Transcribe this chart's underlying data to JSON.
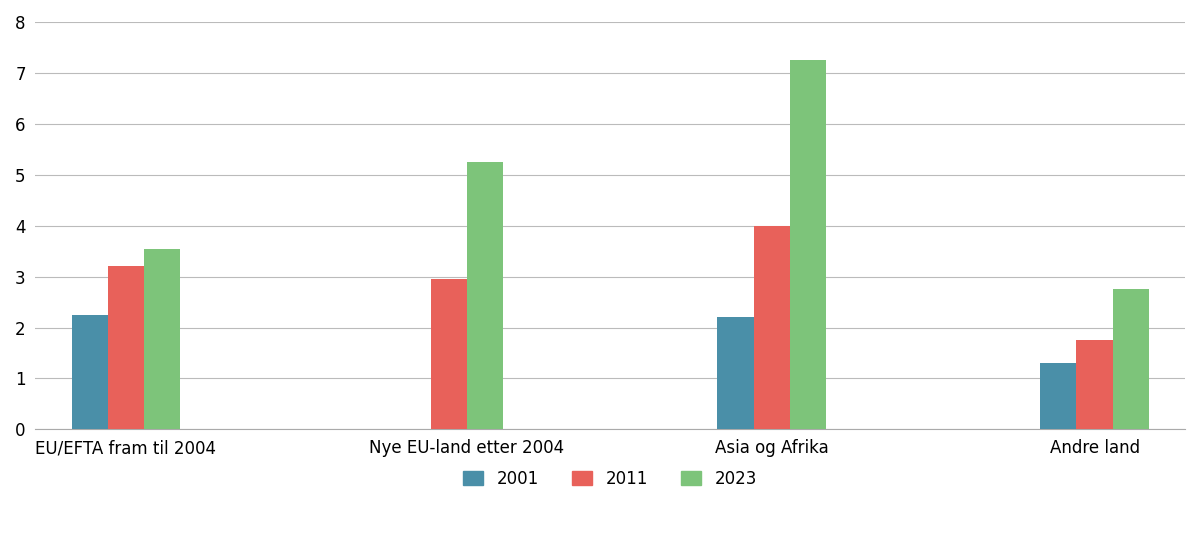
{
  "categories": [
    "EU/EFTA fram til 2004",
    "Nye EU-land etter 2004",
    "Asia og Afrika",
    "Andre land"
  ],
  "series": {
    "2001": [
      2.25,
      null,
      2.2,
      1.3
    ],
    "2011": [
      3.2,
      2.95,
      4.0,
      1.75
    ],
    "2023": [
      3.55,
      5.25,
      7.25,
      2.75
    ]
  },
  "colors": {
    "2001": "#4a8fa8",
    "2011": "#e8615a",
    "2023": "#7dc47a"
  },
  "ylim": [
    0,
    8
  ],
  "yticks": [
    0,
    1,
    2,
    3,
    4,
    5,
    6,
    7,
    8
  ],
  "legend_labels": [
    "2001",
    "2011",
    "2023"
  ],
  "bar_width": 0.28,
  "background_color": "#ffffff",
  "grid_color": "#bbbbbb",
  "tick_fontsize": 12,
  "legend_fontsize": 12
}
